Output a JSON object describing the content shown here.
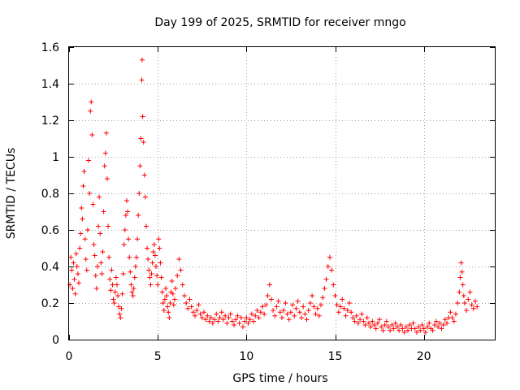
{
  "chart_data": {
    "type": "scatter",
    "title": "Day 199 of 2025, SRMTID for receiver mngo",
    "xlabel": "GPS time / hours",
    "ylabel": "SRMTID / TECUs",
    "xlim": [
      0,
      24
    ],
    "ylim": [
      0,
      1.6
    ],
    "xticks": [
      0,
      5,
      10,
      15,
      20
    ],
    "xtick_labels": [
      "0",
      "5",
      "10",
      "15",
      "20"
    ],
    "yticks": [
      0,
      0.2,
      0.4,
      0.6,
      0.8,
      1.0,
      1.2,
      1.4,
      1.6
    ],
    "ytick_labels": [
      "0",
      "0.2",
      "0.4",
      "0.6",
      "0.8",
      "1",
      "1.2",
      "1.4",
      "1.6"
    ],
    "grid": true,
    "marker": "+",
    "color": "#ff0000",
    "series": [
      {
        "name": "SRMTID",
        "points": [
          [
            0.05,
            0.3
          ],
          [
            0.1,
            0.45
          ],
          [
            0.15,
            0.38
          ],
          [
            0.2,
            0.28
          ],
          [
            0.25,
            0.42
          ],
          [
            0.3,
            0.33
          ],
          [
            0.35,
            0.25
          ],
          [
            0.4,
            0.47
          ],
          [
            0.45,
            0.4
          ],
          [
            0.5,
            0.36
          ],
          [
            0.55,
            0.31
          ],
          [
            0.6,
            0.5
          ],
          [
            0.65,
            0.58
          ],
          [
            0.7,
            0.72
          ],
          [
            0.75,
            0.66
          ],
          [
            0.8,
            0.84
          ],
          [
            0.85,
            0.92
          ],
          [
            0.9,
            0.55
          ],
          [
            0.95,
            0.44
          ],
          [
            1.0,
            0.38
          ],
          [
            1.05,
            0.6
          ],
          [
            1.1,
            0.98
          ],
          [
            1.15,
            0.8
          ],
          [
            1.2,
            1.25
          ],
          [
            1.25,
            1.3
          ],
          [
            1.3,
            1.12
          ],
          [
            1.35,
            0.74
          ],
          [
            1.4,
            0.52
          ],
          [
            1.45,
            0.46
          ],
          [
            1.5,
            0.35
          ],
          [
            1.55,
            0.28
          ],
          [
            1.6,
            0.4
          ],
          [
            1.65,
            0.62
          ],
          [
            1.7,
            0.78
          ],
          [
            1.75,
            0.58
          ],
          [
            1.8,
            0.42
          ],
          [
            1.85,
            0.36
          ],
          [
            1.9,
            0.48
          ],
          [
            1.95,
            0.7
          ],
          [
            2.0,
            0.95
          ],
          [
            2.05,
            1.02
          ],
          [
            2.1,
            1.13
          ],
          [
            2.15,
            0.88
          ],
          [
            2.2,
            0.62
          ],
          [
            2.25,
            0.45
          ],
          [
            2.3,
            0.33
          ],
          [
            2.35,
            0.27
          ],
          [
            2.4,
            0.38
          ],
          [
            2.45,
            0.3
          ],
          [
            2.5,
            0.22
          ],
          [
            2.55,
            0.2
          ],
          [
            2.6,
            0.26
          ],
          [
            2.65,
            0.34
          ],
          [
            2.7,
            0.3
          ],
          [
            2.75,
            0.24
          ],
          [
            2.8,
            0.18
          ],
          [
            2.85,
            0.14
          ],
          [
            2.9,
            0.12
          ],
          [
            2.95,
            0.17
          ],
          [
            3.0,
            0.25
          ],
          [
            3.05,
            0.36
          ],
          [
            3.1,
            0.52
          ],
          [
            3.15,
            0.6
          ],
          [
            3.2,
            0.68
          ],
          [
            3.25,
            0.76
          ],
          [
            3.3,
            0.7
          ],
          [
            3.35,
            0.55
          ],
          [
            3.4,
            0.45
          ],
          [
            3.45,
            0.37
          ],
          [
            3.5,
            0.3
          ],
          [
            3.55,
            0.26
          ],
          [
            3.6,
            0.24
          ],
          [
            3.65,
            0.28
          ],
          [
            3.7,
            0.34
          ],
          [
            3.75,
            0.4
          ],
          [
            3.8,
            0.45
          ],
          [
            3.85,
            0.55
          ],
          [
            3.9,
            0.68
          ],
          [
            3.95,
            0.8
          ],
          [
            4.0,
            0.95
          ],
          [
            4.05,
            1.1
          ],
          [
            4.1,
            1.42
          ],
          [
            4.12,
            1.53
          ],
          [
            4.15,
            1.22
          ],
          [
            4.2,
            1.08
          ],
          [
            4.25,
            0.9
          ],
          [
            4.3,
            0.78
          ],
          [
            4.35,
            0.62
          ],
          [
            4.4,
            0.5
          ],
          [
            4.45,
            0.44
          ],
          [
            4.5,
            0.38
          ],
          [
            4.55,
            0.34
          ],
          [
            4.6,
            0.3
          ],
          [
            4.65,
            0.36
          ],
          [
            4.7,
            0.42
          ],
          [
            4.75,
            0.48
          ],
          [
            4.8,
            0.52
          ],
          [
            4.85,
            0.46
          ],
          [
            4.9,
            0.4
          ],
          [
            4.95,
            0.35
          ],
          [
            5.0,
            0.3
          ],
          [
            5.05,
            0.55
          ],
          [
            5.1,
            0.5
          ],
          [
            5.15,
            0.42
          ],
          [
            5.2,
            0.34
          ],
          [
            5.25,
            0.26
          ],
          [
            5.3,
            0.2
          ],
          [
            5.35,
            0.16
          ],
          [
            5.4,
            0.22
          ],
          [
            5.45,
            0.28
          ],
          [
            5.5,
            0.24
          ],
          [
            5.55,
            0.18
          ],
          [
            5.6,
            0.15
          ],
          [
            5.65,
            0.12
          ],
          [
            5.7,
            0.2
          ],
          [
            5.75,
            0.26
          ],
          [
            5.8,
            0.32
          ],
          [
            5.85,
            0.25
          ],
          [
            5.9,
            0.19
          ],
          [
            5.95,
            0.22
          ],
          [
            6.0,
            0.28
          ],
          [
            6.1,
            0.35
          ],
          [
            6.2,
            0.44
          ],
          [
            6.3,
            0.38
          ],
          [
            6.4,
            0.3
          ],
          [
            6.5,
            0.24
          ],
          [
            6.6,
            0.2
          ],
          [
            6.7,
            0.17
          ],
          [
            6.8,
            0.22
          ],
          [
            6.9,
            0.18
          ],
          [
            7.0,
            0.15
          ],
          [
            7.1,
            0.13
          ],
          [
            7.2,
            0.16
          ],
          [
            7.3,
            0.19
          ],
          [
            7.4,
            0.14
          ],
          [
            7.5,
            0.12
          ],
          [
            7.6,
            0.15
          ],
          [
            7.7,
            0.11
          ],
          [
            7.8,
            0.13
          ],
          [
            7.9,
            0.1
          ],
          [
            8.0,
            0.12
          ],
          [
            8.1,
            0.09
          ],
          [
            8.2,
            0.11
          ],
          [
            8.3,
            0.14
          ],
          [
            8.4,
            0.1
          ],
          [
            8.5,
            0.12
          ],
          [
            8.6,
            0.15
          ],
          [
            8.7,
            0.11
          ],
          [
            8.8,
            0.13
          ],
          [
            8.9,
            0.09
          ],
          [
            9.0,
            0.12
          ],
          [
            9.1,
            0.14
          ],
          [
            9.2,
            0.1
          ],
          [
            9.3,
            0.08
          ],
          [
            9.4,
            0.11
          ],
          [
            9.5,
            0.13
          ],
          [
            9.6,
            0.09
          ],
          [
            9.7,
            0.12
          ],
          [
            9.8,
            0.07
          ],
          [
            9.9,
            0.1
          ],
          [
            10.0,
            0.12
          ],
          [
            10.1,
            0.09
          ],
          [
            10.2,
            0.11
          ],
          [
            10.3,
            0.14
          ],
          [
            10.4,
            0.1
          ],
          [
            10.5,
            0.13
          ],
          [
            10.6,
            0.16
          ],
          [
            10.7,
            0.12
          ],
          [
            10.8,
            0.15
          ],
          [
            10.9,
            0.18
          ],
          [
            11.0,
            0.14
          ],
          [
            11.1,
            0.19
          ],
          [
            11.2,
            0.24
          ],
          [
            11.3,
            0.3
          ],
          [
            11.4,
            0.22
          ],
          [
            11.5,
            0.16
          ],
          [
            11.6,
            0.13
          ],
          [
            11.7,
            0.18
          ],
          [
            11.8,
            0.21
          ],
          [
            11.9,
            0.15
          ],
          [
            12.0,
            0.12
          ],
          [
            12.1,
            0.16
          ],
          [
            12.2,
            0.2
          ],
          [
            12.3,
            0.14
          ],
          [
            12.4,
            0.11
          ],
          [
            12.5,
            0.15
          ],
          [
            12.6,
            0.19
          ],
          [
            12.7,
            0.13
          ],
          [
            12.8,
            0.17
          ],
          [
            12.9,
            0.21
          ],
          [
            13.0,
            0.15
          ],
          [
            13.1,
            0.12
          ],
          [
            13.2,
            0.18
          ],
          [
            13.3,
            0.14
          ],
          [
            13.4,
            0.11
          ],
          [
            13.5,
            0.16
          ],
          [
            13.6,
            0.2
          ],
          [
            13.7,
            0.24
          ],
          [
            13.8,
            0.18
          ],
          [
            13.9,
            0.14
          ],
          [
            14.0,
            0.17
          ],
          [
            14.1,
            0.13
          ],
          [
            14.2,
            0.19
          ],
          [
            14.3,
            0.23
          ],
          [
            14.4,
            0.28
          ],
          [
            14.5,
            0.33
          ],
          [
            14.6,
            0.4
          ],
          [
            14.7,
            0.45
          ],
          [
            14.8,
            0.38
          ],
          [
            14.9,
            0.3
          ],
          [
            15.0,
            0.24
          ],
          [
            15.1,
            0.19
          ],
          [
            15.2,
            0.15
          ],
          [
            15.3,
            0.18
          ],
          [
            15.4,
            0.22
          ],
          [
            15.5,
            0.17
          ],
          [
            15.6,
            0.13
          ],
          [
            15.7,
            0.16
          ],
          [
            15.8,
            0.2
          ],
          [
            15.9,
            0.15
          ],
          [
            16.0,
            0.12
          ],
          [
            16.1,
            0.1
          ],
          [
            16.2,
            0.13
          ],
          [
            16.3,
            0.09
          ],
          [
            16.4,
            0.11
          ],
          [
            16.5,
            0.14
          ],
          [
            16.6,
            0.1
          ],
          [
            16.7,
            0.08
          ],
          [
            16.8,
            0.12
          ],
          [
            16.9,
            0.09
          ],
          [
            17.0,
            0.07
          ],
          [
            17.1,
            0.1
          ],
          [
            17.2,
            0.08
          ],
          [
            17.3,
            0.06
          ],
          [
            17.4,
            0.09
          ],
          [
            17.5,
            0.11
          ],
          [
            17.6,
            0.07
          ],
          [
            17.7,
            0.05
          ],
          [
            17.8,
            0.08
          ],
          [
            17.9,
            0.1
          ],
          [
            18.0,
            0.07
          ],
          [
            18.1,
            0.05
          ],
          [
            18.2,
            0.08
          ],
          [
            18.3,
            0.06
          ],
          [
            18.4,
            0.09
          ],
          [
            18.5,
            0.07
          ],
          [
            18.6,
            0.05
          ],
          [
            18.7,
            0.08
          ],
          [
            18.8,
            0.06
          ],
          [
            18.9,
            0.04
          ],
          [
            19.0,
            0.07
          ],
          [
            19.1,
            0.05
          ],
          [
            19.2,
            0.08
          ],
          [
            19.3,
            0.06
          ],
          [
            19.4,
            0.09
          ],
          [
            19.5,
            0.06
          ],
          [
            19.6,
            0.04
          ],
          [
            19.7,
            0.07
          ],
          [
            19.8,
            0.05
          ],
          [
            19.9,
            0.08
          ],
          [
            20.0,
            0.06
          ],
          [
            20.1,
            0.04
          ],
          [
            20.2,
            0.07
          ],
          [
            20.3,
            0.09
          ],
          [
            20.4,
            0.06
          ],
          [
            20.5,
            0.05
          ],
          [
            20.6,
            0.08
          ],
          [
            20.7,
            0.1
          ],
          [
            20.8,
            0.07
          ],
          [
            20.9,
            0.09
          ],
          [
            21.0,
            0.06
          ],
          [
            21.1,
            0.08
          ],
          [
            21.2,
            0.11
          ],
          [
            21.3,
            0.09
          ],
          [
            21.4,
            0.12
          ],
          [
            21.5,
            0.15
          ],
          [
            21.6,
            0.12
          ],
          [
            21.7,
            0.1
          ],
          [
            21.8,
            0.14
          ],
          [
            21.9,
            0.2
          ],
          [
            22.0,
            0.26
          ],
          [
            22.05,
            0.34
          ],
          [
            22.1,
            0.42
          ],
          [
            22.15,
            0.37
          ],
          [
            22.2,
            0.3
          ],
          [
            22.25,
            0.24
          ],
          [
            22.3,
            0.2
          ],
          [
            22.4,
            0.16
          ],
          [
            22.5,
            0.22
          ],
          [
            22.6,
            0.26
          ],
          [
            22.7,
            0.19
          ],
          [
            22.8,
            0.17
          ],
          [
            22.9,
            0.21
          ],
          [
            23.0,
            0.18
          ]
        ]
      }
    ]
  }
}
